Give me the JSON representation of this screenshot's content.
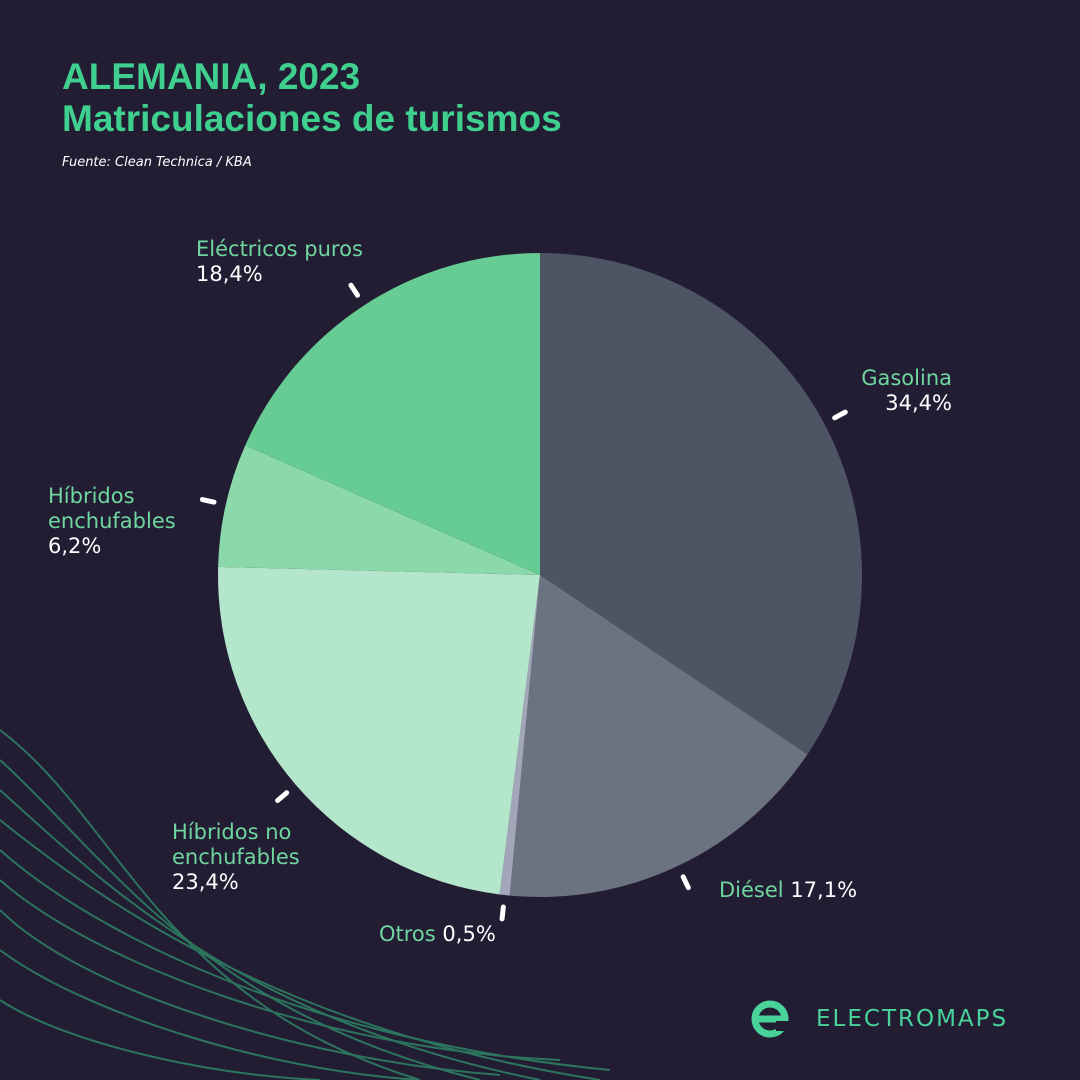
{
  "chart_data": {
    "type": "pie",
    "title": "ALEMANIA, 2023",
    "subtitle": "Matriculaciones de turismos",
    "source": "Fuente: Clean Technica / KBA",
    "categories": [
      "Gasolina",
      "Diésel",
      "Otros",
      "Híbridos no enchufables",
      "Híbridos enchufables",
      "Eléctricos puros"
    ],
    "values": [
      34.4,
      17.1,
      0.5,
      23.4,
      6.2,
      18.4
    ],
    "value_labels": [
      "34,4%",
      "17,1%",
      "0,5%",
      "23,4%",
      "6,2%",
      "18,4%"
    ],
    "colors": [
      "#4d5564",
      "#6b7280",
      "#a3a6b8",
      "#b3e6cb",
      "#8bd8ab",
      "#66cc93"
    ]
  },
  "brand": "ELECTROMAPS"
}
